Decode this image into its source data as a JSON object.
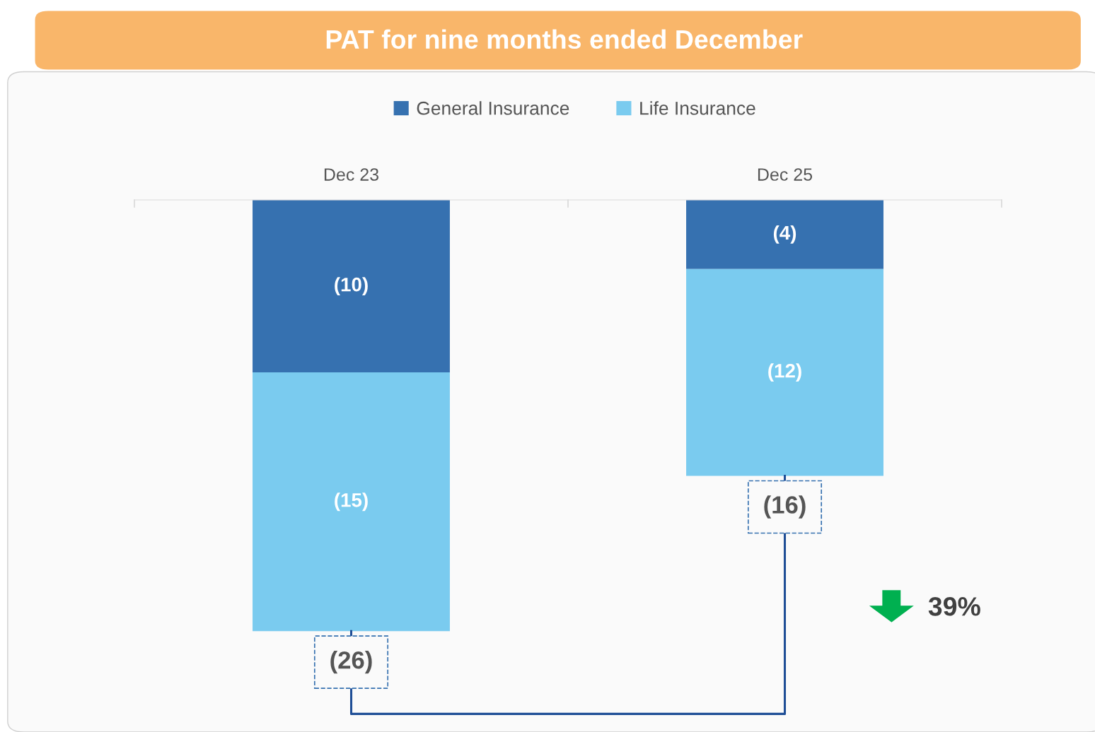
{
  "chart_data": {
    "type": "bar",
    "title": "PAT for nine months ended December",
    "categories": [
      "Dec 23",
      "Dec 25"
    ],
    "stacked": true,
    "tick_labels": "x",
    "legend": "top",
    "grid": false,
    "series": [
      {
        "name": "General Insurance",
        "color": "#3671b0",
        "values": [
          -10,
          -4
        ],
        "value_labels": [
          "(10)",
          "(4)"
        ]
      },
      {
        "name": "Life Insurance",
        "color": "#7acbef",
        "values": [
          -15,
          -12
        ],
        "value_labels": [
          "(15)",
          "(12)"
        ]
      }
    ],
    "totals": [
      "(26)",
      "(16)"
    ],
    "annotations": [
      "39%"
    ]
  }
}
